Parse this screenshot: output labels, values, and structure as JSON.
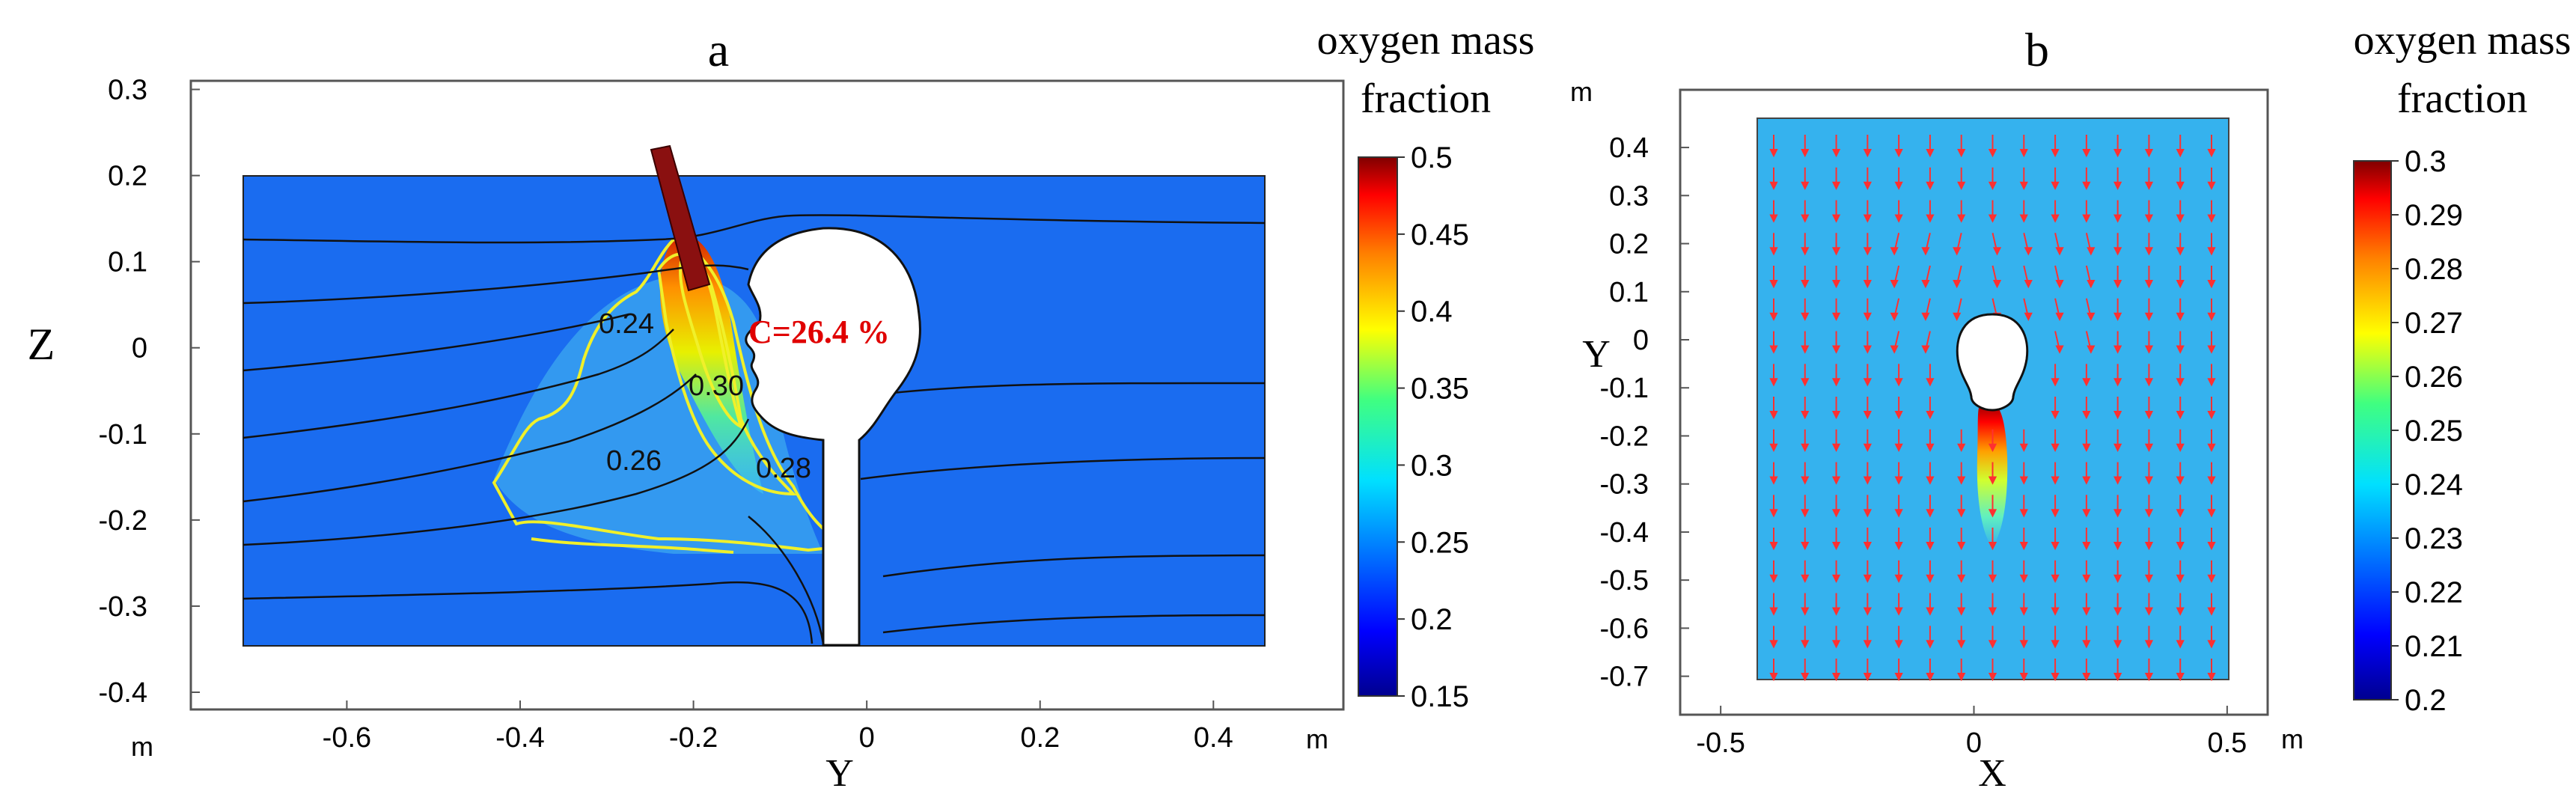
{
  "colors": {
    "background": "#1a6cf0",
    "light_background": "#35b2ee",
    "annotation": "#e00000",
    "contour": "#f0f02a",
    "arrow": "#ff3030",
    "nozzle": "#8a1010"
  },
  "chart_data": [
    {
      "type": "heatmap",
      "panel_label": "a",
      "title": "oxygen mass fraction",
      "xlabel": "Y",
      "ylabel": "Z",
      "xunit": "m",
      "yunit": "m",
      "xlim": [
        -0.78,
        0.55
      ],
      "ylim": [
        -0.42,
        0.31
      ],
      "xticks": [
        -0.6,
        -0.4,
        -0.2,
        0,
        0.2,
        0.4
      ],
      "xtick_labels": [
        "-0.6",
        "-0.4",
        "-0.2",
        "0",
        "0.2",
        "0.4"
      ],
      "yticks": [
        0.3,
        0.2,
        0.1,
        0,
        -0.1,
        -0.2,
        -0.3,
        -0.4
      ],
      "ytick_labels": [
        "0.3",
        "0.2",
        "0.1",
        "0",
        "-0.1",
        "-0.2",
        "-0.3",
        "-0.4"
      ],
      "domain": {
        "x": [
          -0.7,
          0.5
        ],
        "z": [
          -0.35,
          0.2
        ]
      },
      "colorbar": {
        "title_line1": "oxygen mass",
        "title_line2": "fraction",
        "min": 0.15,
        "max": 0.5,
        "ticks": [
          0.5,
          0.45,
          0.4,
          0.35,
          0.3,
          0.25,
          0.2,
          0.15
        ],
        "tick_labels": [
          "0.5",
          "0.45",
          "0.4",
          "0.35",
          "0.3",
          "0.25",
          "0.2",
          "0.15"
        ]
      },
      "contour_labels": [
        {
          "text": "0.24",
          "x": -0.24,
          "z": 0.025
        },
        {
          "text": "0.30",
          "x": -0.14,
          "z": -0.045
        },
        {
          "text": "0.26",
          "x": -0.23,
          "z": -0.13
        },
        {
          "text": "0.28",
          "x": -0.057,
          "z": -0.145
        }
      ],
      "annotation": {
        "text": "C=26.4 %",
        "x": -0.105,
        "z": 0.01
      },
      "streamlines_z": [
        0.13,
        0.05,
        -0.03,
        -0.11,
        -0.19,
        -0.24,
        -0.3
      ]
    },
    {
      "type": "heatmap",
      "panel_label": "b",
      "title": "oxygen mass fraction",
      "xlabel": "X",
      "ylabel": "Y",
      "xunit": "m",
      "yunit": "m",
      "xlim": [
        -0.58,
        0.58
      ],
      "ylim": [
        -0.78,
        0.52
      ],
      "xticks": [
        -0.5,
        0,
        0.5
      ],
      "xtick_labels": [
        "-0.5",
        "0",
        "0.5"
      ],
      "yticks": [
        0.4,
        0.3,
        0.2,
        0.1,
        0,
        -0.1,
        -0.2,
        -0.3,
        -0.4,
        -0.5,
        -0.6,
        -0.7
      ],
      "ytick_labels": [
        "0.4",
        "0.3",
        "0.2",
        "0.1",
        "0",
        "-0.1",
        "-0.2",
        "-0.3",
        "-0.4",
        "-0.5",
        "-0.6",
        "-0.7"
      ],
      "domain": {
        "x": [
          -0.5,
          0.5
        ],
        "y": [
          -0.7,
          0.5
        ]
      },
      "colorbar": {
        "title_line1": "oxygen mass",
        "title_line2": "fraction",
        "min": 0.2,
        "max": 0.3,
        "ticks": [
          0.3,
          0.29,
          0.28,
          0.27,
          0.26,
          0.25,
          0.24,
          0.23,
          0.22,
          0.21,
          0.2
        ],
        "tick_labels": [
          "0.3",
          "0.29",
          "0.28",
          "0.27",
          "0.26",
          "0.25",
          "0.24",
          "0.23",
          "0.22",
          "0.21",
          "0.2"
        ]
      },
      "arrow_columns": 15,
      "arrow_rows": 17
    }
  ]
}
